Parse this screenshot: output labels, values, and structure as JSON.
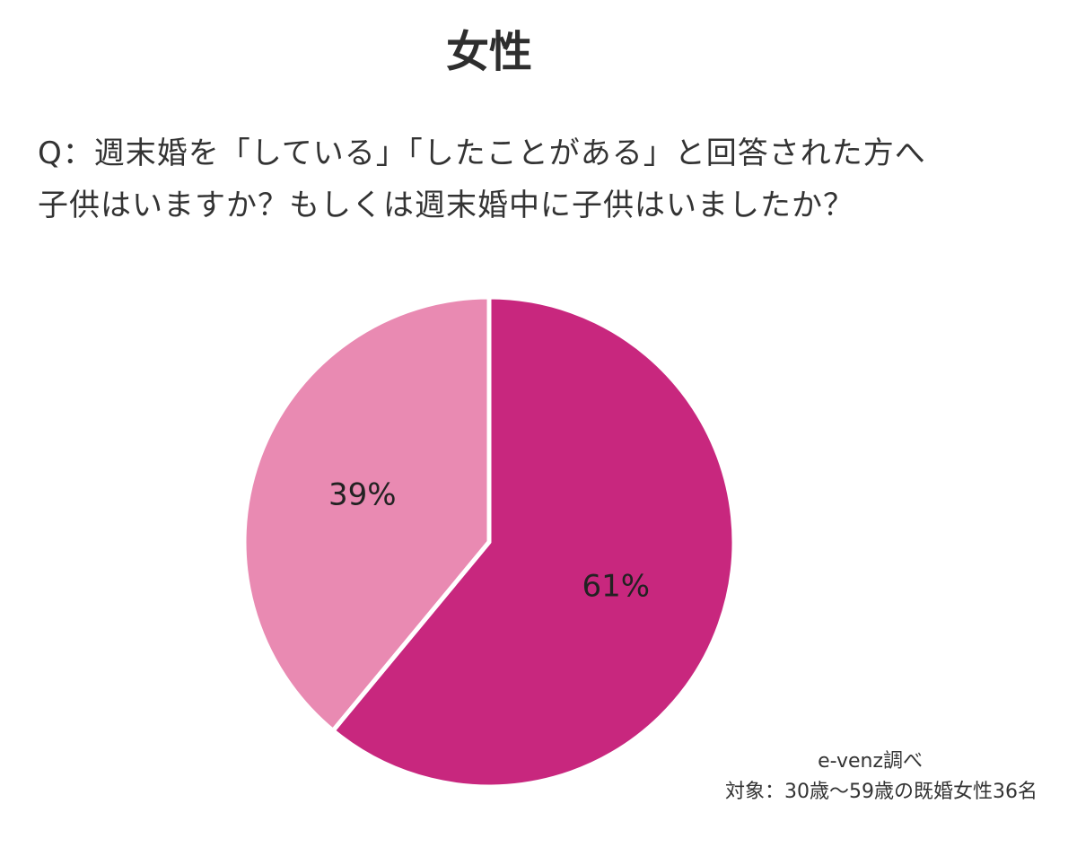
{
  "title": "女性",
  "question": {
    "line1": "Q：週末婚を「している」「したことがある」と回答された方へ",
    "line2": "子供はいますか？もしくは週末婚中に子供はいましたか？"
  },
  "chart_data": {
    "type": "pie",
    "slices": [
      {
        "value": 61,
        "label": "61%",
        "color": "#c8277e"
      },
      {
        "value": 39,
        "label": "39%",
        "color": "#e98ab2"
      }
    ],
    "start": "12 o'clock",
    "direction": "clockwise"
  },
  "footnote": {
    "source": "e-venz調べ",
    "target": "対象：30歳〜59歳の既婚女性36名"
  }
}
